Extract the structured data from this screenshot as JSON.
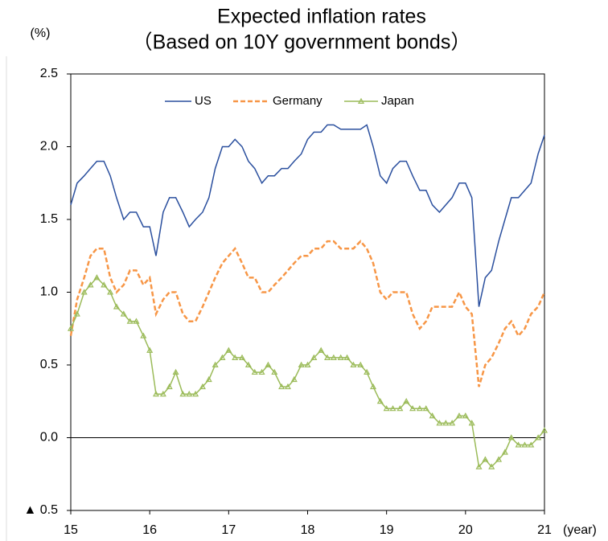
{
  "chart_data": {
    "type": "line",
    "title": "Expected inflation rates",
    "subtitle": "（Based on 10Y government bonds）",
    "y_label": "(%)",
    "x_label": "(year)",
    "x": [
      15.0,
      15.08,
      15.17,
      15.25,
      15.33,
      15.42,
      15.5,
      15.58,
      15.67,
      15.75,
      15.83,
      15.92,
      16.0,
      16.08,
      16.17,
      16.25,
      16.33,
      16.42,
      16.5,
      16.58,
      16.67,
      16.75,
      16.83,
      16.92,
      17.0,
      17.08,
      17.17,
      17.25,
      17.33,
      17.42,
      17.5,
      17.58,
      17.67,
      17.75,
      17.83,
      17.92,
      18.0,
      18.08,
      18.17,
      18.25,
      18.33,
      18.42,
      18.5,
      18.58,
      18.67,
      18.75,
      18.83,
      18.92,
      19.0,
      19.08,
      19.17,
      19.25,
      19.33,
      19.42,
      19.5,
      19.58,
      19.67,
      19.75,
      19.83,
      19.92,
      20.0,
      20.08,
      20.17,
      20.25,
      20.33,
      20.42,
      20.5,
      20.58,
      20.67,
      20.75,
      20.83,
      20.92,
      21.0
    ],
    "series": [
      {
        "name": "US",
        "color": "#2a4f9e",
        "style": "solid",
        "values": [
          1.6,
          1.75,
          1.8,
          1.85,
          1.9,
          1.9,
          1.8,
          1.65,
          1.5,
          1.55,
          1.55,
          1.45,
          1.45,
          1.25,
          1.55,
          1.65,
          1.65,
          1.55,
          1.45,
          1.5,
          1.55,
          1.65,
          1.85,
          2.0,
          2.0,
          2.05,
          2.0,
          1.9,
          1.85,
          1.75,
          1.8,
          1.8,
          1.85,
          1.85,
          1.9,
          1.95,
          2.05,
          2.1,
          2.1,
          2.15,
          2.15,
          2.12,
          2.12,
          2.12,
          2.12,
          2.15,
          2.0,
          1.8,
          1.75,
          1.85,
          1.9,
          1.9,
          1.8,
          1.7,
          1.7,
          1.6,
          1.55,
          1.6,
          1.65,
          1.75,
          1.75,
          1.65,
          0.9,
          1.1,
          1.15,
          1.35,
          1.5,
          1.65,
          1.65,
          1.7,
          1.75,
          1.95,
          2.08
        ]
      },
      {
        "name": "Germany",
        "color": "#f79646",
        "style": "dashed",
        "values": [
          0.7,
          0.95,
          1.1,
          1.25,
          1.3,
          1.3,
          1.1,
          1.0,
          1.05,
          1.15,
          1.15,
          1.05,
          1.1,
          0.85,
          0.95,
          1.0,
          1.0,
          0.85,
          0.8,
          0.8,
          0.9,
          1.0,
          1.1,
          1.2,
          1.25,
          1.3,
          1.2,
          1.1,
          1.1,
          1.0,
          1.0,
          1.05,
          1.1,
          1.15,
          1.2,
          1.25,
          1.25,
          1.3,
          1.3,
          1.35,
          1.35,
          1.3,
          1.3,
          1.3,
          1.35,
          1.3,
          1.2,
          1.0,
          0.95,
          1.0,
          1.0,
          1.0,
          0.85,
          0.75,
          0.8,
          0.9,
          0.9,
          0.9,
          0.9,
          1.0,
          0.9,
          0.85,
          0.35,
          0.5,
          0.55,
          0.65,
          0.75,
          0.8,
          0.7,
          0.75,
          0.85,
          0.9,
          1.0
        ]
      },
      {
        "name": "Japan",
        "color": "#9bbb59",
        "style": "marker",
        "values": [
          0.75,
          0.85,
          1.0,
          1.05,
          1.1,
          1.05,
          1.0,
          0.9,
          0.85,
          0.8,
          0.8,
          0.7,
          0.6,
          0.3,
          0.3,
          0.35,
          0.45,
          0.3,
          0.3,
          0.3,
          0.35,
          0.4,
          0.5,
          0.55,
          0.6,
          0.55,
          0.55,
          0.5,
          0.45,
          0.45,
          0.5,
          0.45,
          0.35,
          0.35,
          0.4,
          0.5,
          0.5,
          0.55,
          0.6,
          0.55,
          0.55,
          0.55,
          0.55,
          0.5,
          0.5,
          0.45,
          0.35,
          0.25,
          0.2,
          0.2,
          0.2,
          0.25,
          0.2,
          0.2,
          0.2,
          0.15,
          0.1,
          0.1,
          0.1,
          0.15,
          0.15,
          0.1,
          -0.2,
          -0.15,
          -0.2,
          -0.15,
          -0.1,
          0.0,
          -0.05,
          -0.05,
          -0.05,
          0.0,
          0.05
        ]
      }
    ],
    "xlim": [
      15,
      21
    ],
    "xticks": [
      15,
      16,
      17,
      18,
      19,
      20,
      21
    ],
    "ylim": [
      -0.5,
      2.5
    ],
    "yticks": [
      {
        "value": -0.5,
        "label": "▲ 0.5"
      },
      {
        "value": 0,
        "label": "0.0"
      },
      0.5,
      {
        "value": 1,
        "label": "1.0"
      },
      1.5,
      {
        "value": 2,
        "label": "2.0"
      },
      2.5
    ],
    "grid": false,
    "legend": "top"
  }
}
